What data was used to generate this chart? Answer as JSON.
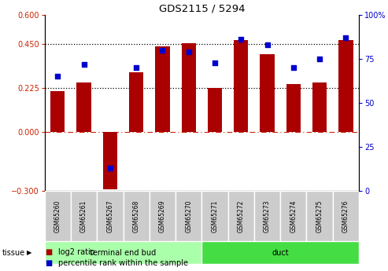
{
  "title": "GDS2115 / 5294",
  "samples": [
    "GSM65260",
    "GSM65261",
    "GSM65267",
    "GSM65268",
    "GSM65269",
    "GSM65270",
    "GSM65271",
    "GSM65272",
    "GSM65273",
    "GSM65274",
    "GSM65275",
    "GSM65276"
  ],
  "log2_ratio": [
    0.21,
    0.255,
    -0.29,
    0.305,
    0.44,
    0.455,
    0.225,
    0.47,
    0.4,
    0.245,
    0.255,
    0.47
  ],
  "percentile_rank": [
    65,
    72,
    13,
    70,
    80,
    79,
    73,
    86,
    83,
    70,
    75,
    87
  ],
  "bar_color": "#AA0000",
  "dot_color": "#0000CC",
  "ylim_left": [
    -0.3,
    0.6
  ],
  "ylim_right": [
    0,
    100
  ],
  "yticks_left": [
    -0.3,
    0,
    0.225,
    0.45,
    0.6
  ],
  "yticks_right": [
    0,
    25,
    50,
    75,
    100
  ],
  "hlines": [
    0.225,
    0.45
  ],
  "zero_line": 0,
  "group1_label": "terminal end bud",
  "group2_label": "duct",
  "group1_color": "#AAFFAA",
  "group2_color": "#44DD44",
  "group1_count": 6,
  "tissue_label": "tissue",
  "legend_bar_label": "log2 ratio",
  "legend_dot_label": "percentile rank within the sample",
  "tick_label_color_left": "#CC2200",
  "tick_label_color_right": "#0000CC",
  "bg_color": "#FFFFFF",
  "plot_bg": "#FFFFFF",
  "bar_width": 0.55,
  "box_color": "#CCCCCC",
  "box_edge_color": "#FFFFFF"
}
